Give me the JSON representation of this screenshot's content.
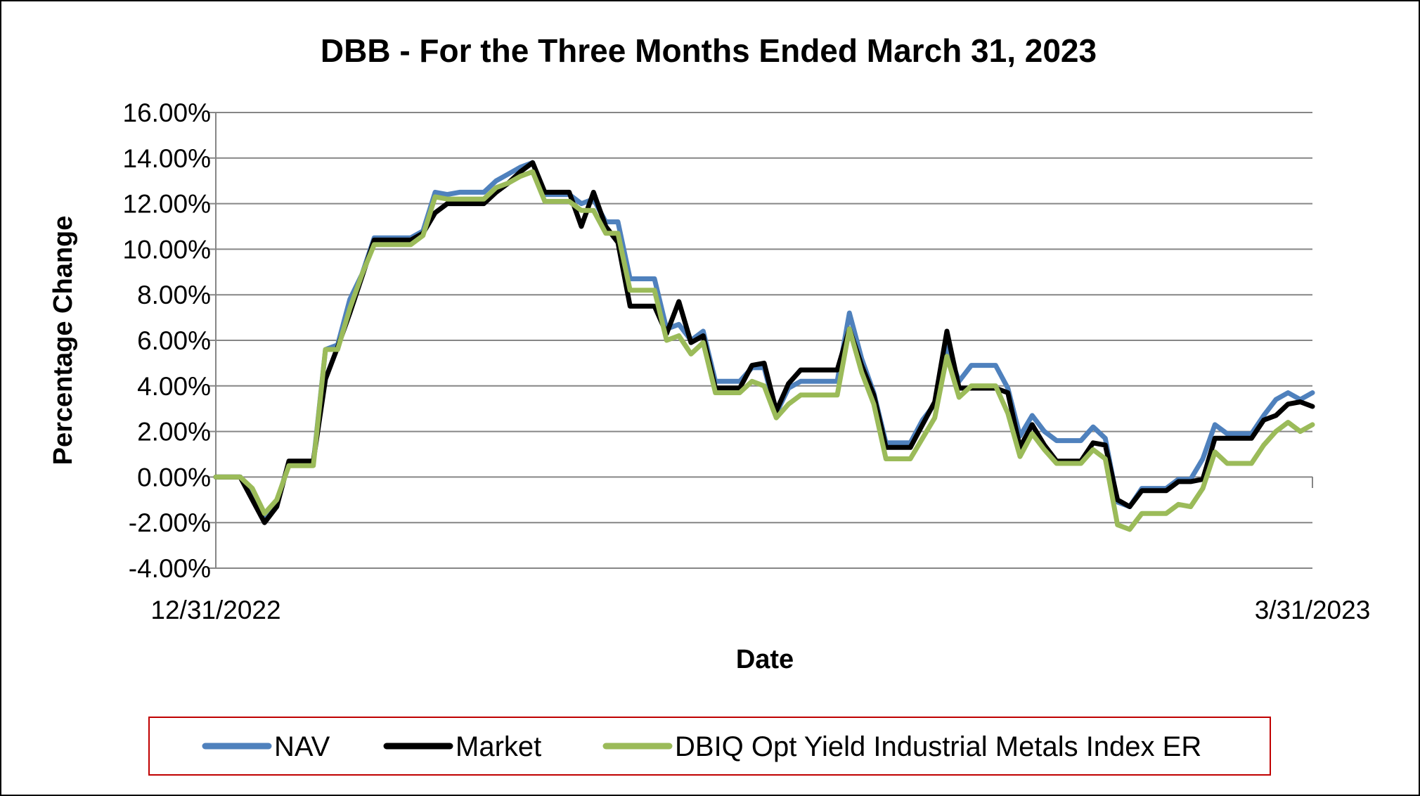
{
  "chart_data": {
    "type": "line",
    "title": "DBB - For the Three Months Ended March 31, 2023",
    "xlabel": "Date",
    "ylabel": "Percentage Change",
    "x_tick_labels": [
      "12/31/2022",
      "3/31/2023"
    ],
    "y_tick_labels": [
      "16.00%",
      "14.00%",
      "12.00%",
      "10.00%",
      "8.00%",
      "6.00%",
      "4.00%",
      "2.00%",
      "0.00%",
      "-2.00%",
      "-4.00%"
    ],
    "ylim": [
      -4,
      16
    ],
    "grid": true,
    "legend_position": "bottom",
    "series": [
      {
        "name": "NAV",
        "color": "#4F81BD",
        "values": [
          0,
          0,
          0,
          -0.7,
          -1.8,
          -1.1,
          0.6,
          0.6,
          0.6,
          5.6,
          5.8,
          7.8,
          8.9,
          10.5,
          10.5,
          10.5,
          10.5,
          10.8,
          12.5,
          12.4,
          12.5,
          12.5,
          12.5,
          13.0,
          13.3,
          13.6,
          13.8,
          12.4,
          12.4,
          12.4,
          12.0,
          12.2,
          11.2,
          11.2,
          8.7,
          8.7,
          8.7,
          6.5,
          6.7,
          6.0,
          6.4,
          4.2,
          4.2,
          4.2,
          4.8,
          4.8,
          2.8,
          3.9,
          4.2,
          4.2,
          4.2,
          4.2,
          7.2,
          5.2,
          3.7,
          1.5,
          1.5,
          1.5,
          2.5,
          3.2,
          5.7,
          4.2,
          4.9,
          4.9,
          4.9,
          3.9,
          1.8,
          2.7,
          2.0,
          1.6,
          1.6,
          1.6,
          2.2,
          1.7,
          -1.1,
          -1.3,
          -0.5,
          -0.5,
          -0.5,
          -0.1,
          -0.1,
          0.8,
          2.3,
          1.9,
          1.9,
          1.9,
          2.7,
          3.4,
          3.7,
          3.4,
          3.7
        ]
      },
      {
        "name": "Market",
        "color": "#000000",
        "values": [
          0,
          0,
          0,
          -1.0,
          -2.0,
          -1.3,
          0.7,
          0.7,
          0.7,
          4.3,
          5.7,
          7.2,
          8.8,
          10.4,
          10.4,
          10.4,
          10.4,
          10.7,
          11.6,
          12.0,
          12.0,
          12.0,
          12.0,
          12.5,
          12.9,
          13.4,
          13.8,
          12.5,
          12.5,
          12.5,
          11.0,
          12.5,
          11.0,
          10.3,
          7.5,
          7.5,
          7.5,
          6.3,
          7.7,
          5.9,
          6.2,
          3.9,
          3.9,
          3.9,
          4.9,
          5.0,
          2.9,
          4.1,
          4.7,
          4.7,
          4.7,
          4.7,
          6.5,
          4.9,
          3.6,
          1.3,
          1.3,
          1.3,
          2.3,
          3.3,
          6.4,
          3.9,
          3.9,
          3.9,
          3.9,
          3.7,
          1.3,
          2.3,
          1.4,
          0.7,
          0.7,
          0.7,
          1.5,
          1.4,
          -1.0,
          -1.3,
          -0.6,
          -0.6,
          -0.6,
          -0.2,
          -0.2,
          -0.1,
          1.7,
          1.7,
          1.7,
          1.7,
          2.5,
          2.7,
          3.2,
          3.3,
          3.1
        ]
      },
      {
        "name": "DBIQ Opt Yield Industrial Metals Index ER",
        "color": "#9BBB59",
        "values": [
          0,
          0,
          0,
          -0.5,
          -1.6,
          -1.0,
          0.5,
          0.5,
          0.5,
          5.6,
          5.6,
          7.4,
          8.9,
          10.2,
          10.2,
          10.2,
          10.2,
          10.6,
          12.3,
          12.2,
          12.2,
          12.2,
          12.2,
          12.7,
          12.9,
          13.2,
          13.4,
          12.1,
          12.1,
          12.1,
          11.7,
          11.7,
          10.7,
          10.7,
          8.2,
          8.2,
          8.2,
          6.0,
          6.2,
          5.4,
          5.9,
          3.7,
          3.7,
          3.7,
          4.2,
          4.0,
          2.6,
          3.2,
          3.6,
          3.6,
          3.6,
          3.6,
          6.5,
          4.6,
          3.2,
          0.8,
          0.8,
          0.8,
          1.7,
          2.6,
          5.3,
          3.5,
          4.0,
          4.0,
          4.0,
          2.8,
          0.9,
          1.9,
          1.2,
          0.6,
          0.6,
          0.6,
          1.2,
          0.8,
          -2.1,
          -2.3,
          -1.6,
          -1.6,
          -1.6,
          -1.2,
          -1.3,
          -0.5,
          1.1,
          0.6,
          0.6,
          0.6,
          1.4,
          2.0,
          2.4,
          2.0,
          2.3
        ]
      }
    ]
  }
}
